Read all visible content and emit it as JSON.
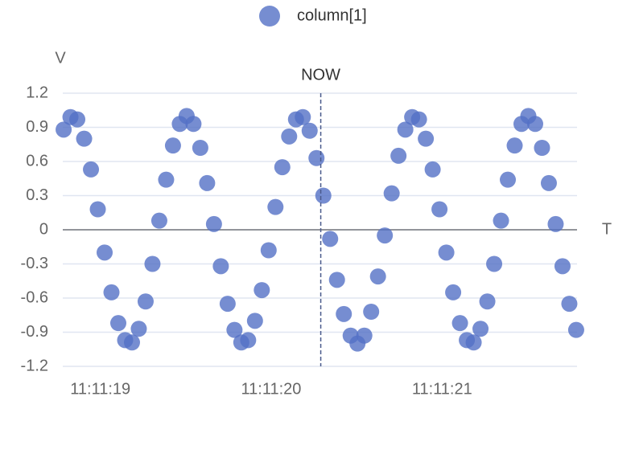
{
  "chart_data": {
    "type": "scatter",
    "legend": "top",
    "series": [
      {
        "name": "column[1]",
        "color": "#5470c6",
        "x": [
          40278.785,
          40278.825,
          40278.865,
          40278.905,
          40278.945,
          40278.985,
          40279.025,
          40279.065,
          40279.105,
          40279.145,
          40279.185,
          40279.225,
          40279.265,
          40279.305,
          40279.345,
          40279.385,
          40279.425,
          40279.465,
          40279.505,
          40279.545,
          40279.585,
          40279.625,
          40279.665,
          40279.705,
          40279.745,
          40279.785,
          40279.825,
          40279.865,
          40279.905,
          40279.945,
          40279.985,
          40280.025,
          40280.065,
          40280.105,
          40280.145,
          40280.185,
          40280.225,
          40280.265,
          40280.305,
          40280.345,
          40280.385,
          40280.425,
          40280.465,
          40280.505,
          40280.545,
          40280.585,
          40280.625,
          40280.665,
          40280.705,
          40280.745,
          40280.785,
          40280.825,
          40280.865,
          40280.905,
          40280.945,
          40280.985,
          40281.025,
          40281.065,
          40281.105,
          40281.145,
          40281.185,
          40281.225,
          40281.265,
          40281.305,
          40281.345,
          40281.385,
          40281.425,
          40281.465,
          40281.505,
          40281.545,
          40281.585,
          40281.625,
          40281.665,
          40281.705,
          40281.745,
          40281.785
        ],
        "values": [
          0.88,
          0.99,
          0.97,
          0.8,
          0.53,
          0.18,
          -0.2,
          -0.55,
          -0.82,
          -0.97,
          -0.99,
          -0.87,
          -0.63,
          -0.3,
          0.08,
          0.44,
          0.74,
          0.93,
          1.0,
          0.93,
          0.72,
          0.41,
          0.05,
          -0.32,
          -0.65,
          -0.88,
          -0.99,
          -0.97,
          -0.8,
          -0.53,
          -0.18,
          0.2,
          0.55,
          0.82,
          0.97,
          0.99,
          0.87,
          0.63,
          0.3,
          -0.08,
          -0.44,
          -0.74,
          -0.93,
          -1.0,
          -0.93,
          -0.72,
          -0.41,
          -0.05,
          0.32,
          0.65,
          0.88,
          0.99,
          0.97,
          0.8,
          0.53,
          0.18,
          -0.2,
          -0.55,
          -0.82,
          -0.97,
          -0.99,
          -0.87,
          -0.63,
          -0.3,
          0.08,
          0.44,
          0.74,
          0.93,
          1.0,
          0.93,
          0.72,
          0.41,
          0.05,
          -0.32,
          -0.65,
          -0.88
        ]
      }
    ],
    "xlabel": "T",
    "ylabel": "V",
    "xlim": [
      40278.78,
      40281.79
    ],
    "xticks": [
      {
        "value": 40279,
        "label": "11:11:19"
      },
      {
        "value": 40280,
        "label": "11:11:20"
      },
      {
        "value": 40281,
        "label": "11:11:21"
      }
    ],
    "ylim": [
      -1.2,
      1.2
    ],
    "yticks": [
      -1.2,
      -0.9,
      -0.6,
      -0.3,
      0,
      0.3,
      0.6,
      0.9,
      1.2
    ],
    "grid": true,
    "annotations": [
      {
        "x": 40280.29,
        "label": "NOW"
      }
    ]
  }
}
